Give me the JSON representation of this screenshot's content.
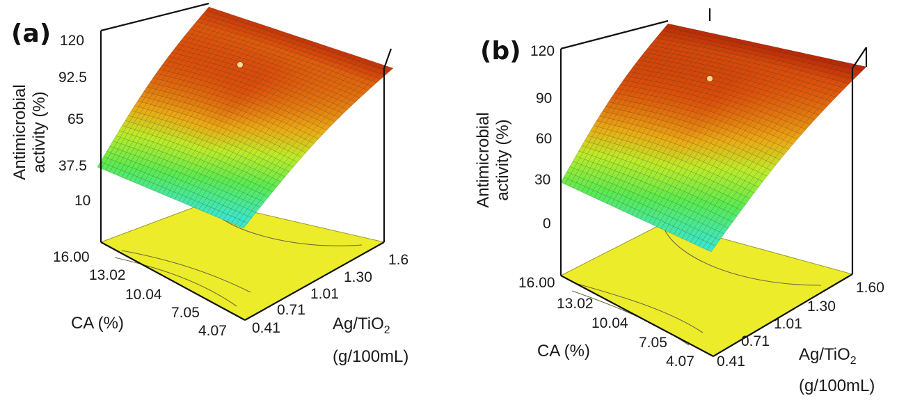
{
  "chart_data": [
    {
      "type": "surface3d",
      "panel_label": "(a)",
      "zlabel_line1": "Antimicrobial",
      "zlabel_line2": "activity (%)",
      "z_ticks": [
        "120",
        "92.5",
        "65",
        "37.5",
        "10"
      ],
      "zlim": [
        10,
        120
      ],
      "ca_label": "CA (%)",
      "ca_ticks": [
        "16.00",
        "13.02",
        "10.04",
        "7.05",
        "4.07"
      ],
      "ag_label_line1": "Ag/TiO",
      "ag_label_sub": "2",
      "ag_label_line2": "(g/100mL)",
      "ag_ticks": [
        "0.41",
        "0.71",
        "1.01",
        "1.30",
        "1.6"
      ],
      "surface_corners": {
        "ca_16_ag_0.41": 35,
        "ca_4.07_ag_0.41": 2,
        "ca_16_ag_1.6": 96,
        "ca_4.07_ag_1.6": 98
      },
      "design_point": {
        "ca": 10.04,
        "ag": 1.01,
        "activity": 96
      }
    },
    {
      "type": "surface3d",
      "panel_label": "(b)",
      "zlabel_line1": "Antimicrobial",
      "zlabel_line2": "activity (%)",
      "z_ticks": [
        "120",
        "90",
        "60",
        "30",
        "0"
      ],
      "zlim": [
        0,
        120
      ],
      "ca_label": "CA (%)",
      "ca_ticks": [
        "16.00",
        "13.02",
        "10.04",
        "7.05",
        "4.07"
      ],
      "ag_label_line1": "Ag/TiO",
      "ag_label_sub": "2",
      "ag_label_line2": "(g/100mL)",
      "ag_ticks": [
        "0.41",
        "0.71",
        "1.01",
        "1.30",
        "1.60"
      ],
      "surface_corners": {
        "ca_16_ag_0.41": 34,
        "ca_4.07_ag_0.41": -5,
        "ca_16_ag_1.6": 98,
        "ca_4.07_ag_1.6": 100
      },
      "design_point": {
        "ca": 10.04,
        "ag": 1.01,
        "activity": 98
      }
    }
  ]
}
